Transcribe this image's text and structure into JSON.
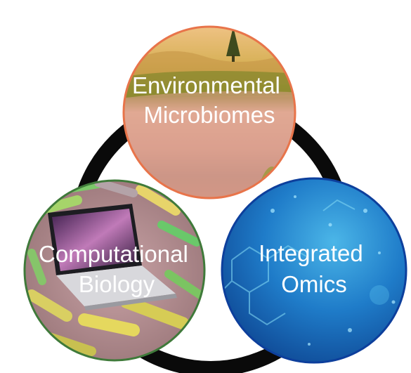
{
  "diagram": {
    "ring_color": "#0a0a0a",
    "nodes": [
      {
        "id": "environmental-microbiomes",
        "lines": [
          "Environmental",
          "Microbiomes"
        ],
        "border_color": "#e8744a",
        "theme": "landscape photo of river and meadow"
      },
      {
        "id": "computational-biology",
        "lines": [
          "Computational",
          "Biology"
        ],
        "border_color": "#3f7a3a",
        "theme": "laptop among colorized bacteria"
      },
      {
        "id": "integrated-omics",
        "lines": [
          "Integrated",
          "Omics"
        ],
        "border_color": "#0d3f9c",
        "theme": "blue molecular structure background"
      }
    ]
  }
}
